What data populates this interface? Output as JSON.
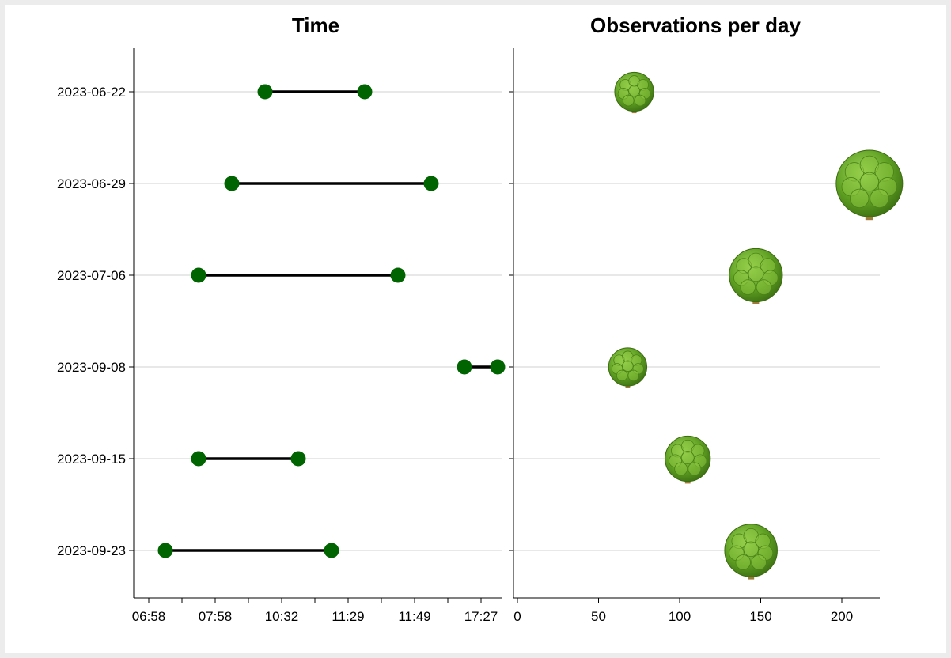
{
  "chart_data": [
    {
      "type": "dumbbell",
      "title": "Time",
      "categories": [
        "2023-06-22",
        "2023-06-29",
        "2023-07-06",
        "2023-09-08",
        "2023-09-15",
        "2023-09-23"
      ],
      "x_tick_labels": [
        "06:58",
        "07:58",
        "10:32",
        "11:29",
        "11:49",
        "17:27"
      ],
      "x_tick_count": 11,
      "x_unit_note": "tick index",
      "xlim": [
        0,
        10.5
      ],
      "ranges": [
        {
          "category": "2023-06-22",
          "start": 3.5,
          "end": 6.5
        },
        {
          "category": "2023-06-29",
          "start": 2.5,
          "end": 8.5
        },
        {
          "category": "2023-07-06",
          "start": 1.5,
          "end": 7.5
        },
        {
          "category": "2023-09-08",
          "start": 9.5,
          "end": 10.5
        },
        {
          "category": "2023-09-15",
          "start": 1.5,
          "end": 4.5
        },
        {
          "category": "2023-09-23",
          "start": 0.5,
          "end": 5.5
        }
      ],
      "marker_color": "#006400",
      "line_color": "#000000",
      "grid": "horizontal"
    },
    {
      "type": "scatter",
      "title": "Observations per day",
      "categories": [
        "2023-06-22",
        "2023-06-29",
        "2023-07-06",
        "2023-09-08",
        "2023-09-15",
        "2023-09-23"
      ],
      "values": [
        72,
        217,
        147,
        68,
        105,
        144
      ],
      "x_ticks": [
        0,
        50,
        100,
        150,
        200
      ],
      "xlim": [
        0,
        220
      ],
      "marker": "tree-icon",
      "marker_colors": {
        "canopy": "#5a9a1e",
        "canopy_light": "#8cc63f",
        "trunk": "#a07a3c"
      },
      "grid": "horizontal"
    }
  ]
}
